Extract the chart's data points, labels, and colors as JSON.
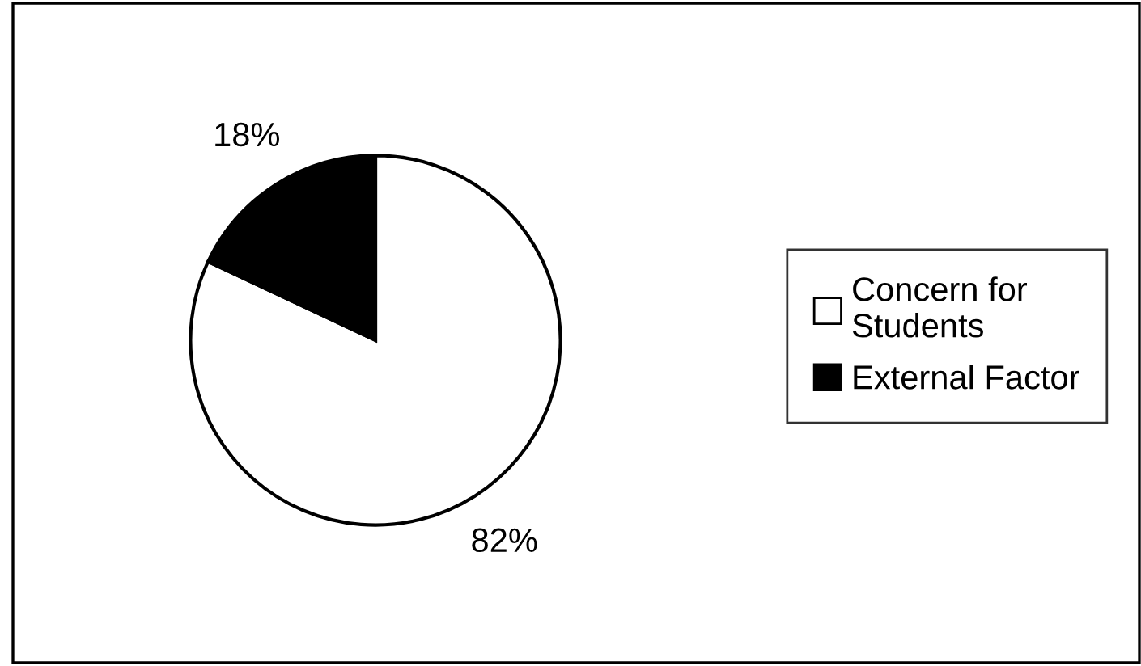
{
  "chart_data": {
    "type": "pie",
    "categories": [
      "Concern for\nStudents",
      "External Factor"
    ],
    "values": [
      82,
      18
    ],
    "colors": [
      "#ffffff",
      "#000000"
    ],
    "value_labels": [
      "82%",
      "18%"
    ],
    "legend": "right"
  }
}
